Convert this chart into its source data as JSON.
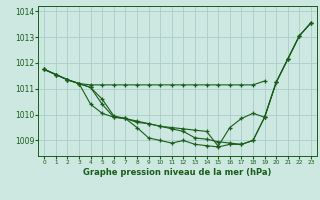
{
  "background_color": "#cce8e0",
  "grid_color": "#aacccc",
  "line_color": "#1a5c1a",
  "title": "Graphe pression niveau de la mer (hPa)",
  "ylim": [
    1008.4,
    1014.2
  ],
  "xlim": [
    -0.5,
    23.5
  ],
  "yticks": [
    1009,
    1010,
    1011,
    1012,
    1013,
    1014
  ],
  "xticks": [
    0,
    1,
    2,
    3,
    4,
    5,
    6,
    7,
    8,
    9,
    10,
    11,
    12,
    13,
    14,
    15,
    16,
    17,
    18,
    19,
    20,
    21,
    22,
    23
  ],
  "series": [
    {
      "x": [
        0,
        1,
        2,
        3,
        4,
        5,
        6,
        7,
        8,
        9,
        10,
        11,
        12,
        13,
        14,
        15,
        16,
        17,
        18,
        19,
        20,
        21,
        22,
        23
      ],
      "y": [
        1011.75,
        1011.55,
        1011.35,
        1011.2,
        1011.15,
        1011.15,
        1011.15,
        1011.15,
        1011.15,
        1011.15,
        1011.15,
        1011.15,
        1011.15,
        1011.15,
        1011.15,
        1011.15,
        1011.15,
        1011.15,
        1011.15,
        1011.3,
        null,
        null,
        null,
        null
      ]
    },
    {
      "x": [
        0,
        1,
        2,
        3,
        4,
        5,
        6,
        7,
        8,
        9,
        10,
        11,
        12,
        13,
        14,
        15,
        16,
        17,
        18,
        19,
        20,
        21,
        22,
        23
      ],
      "y": [
        1011.75,
        1011.55,
        1011.35,
        1011.2,
        1011.05,
        1010.6,
        1009.95,
        1009.85,
        1009.75,
        1009.65,
        1009.55,
        1009.45,
        1009.35,
        1009.1,
        1009.05,
        1008.95,
        1008.9,
        1008.85,
        1009.0,
        1009.9,
        1011.25,
        1012.15,
        1013.05,
        1013.55
      ]
    },
    {
      "x": [
        0,
        1,
        2,
        3,
        4,
        5,
        6,
        7,
        8,
        9,
        10,
        11,
        12,
        13,
        14,
        15,
        16,
        17,
        18,
        19,
        20,
        21,
        22,
        23
      ],
      "y": [
        1011.75,
        1011.55,
        1011.35,
        1011.2,
        1011.05,
        1010.4,
        1009.9,
        1009.85,
        1009.5,
        1009.1,
        1009.0,
        1008.9,
        1009.0,
        1008.85,
        1008.8,
        1008.75,
        1008.85,
        1008.85,
        1009.0,
        1009.9,
        1011.25,
        1012.15,
        1013.05,
        1013.55
      ]
    },
    {
      "x": [
        0,
        1,
        2,
        3,
        4,
        5,
        6,
        7,
        8,
        9,
        10,
        11,
        12,
        13,
        14,
        15,
        16,
        17,
        18,
        19,
        20,
        21,
        22,
        23
      ],
      "y": [
        1011.75,
        1011.55,
        1011.35,
        1011.2,
        1010.4,
        1010.05,
        1009.9,
        1009.85,
        1009.7,
        1009.65,
        1009.55,
        1009.5,
        1009.45,
        1009.4,
        1009.35,
        1008.78,
        1009.5,
        1009.85,
        1010.05,
        1009.9,
        1011.25,
        1012.15,
        1013.05,
        1013.55
      ]
    }
  ]
}
